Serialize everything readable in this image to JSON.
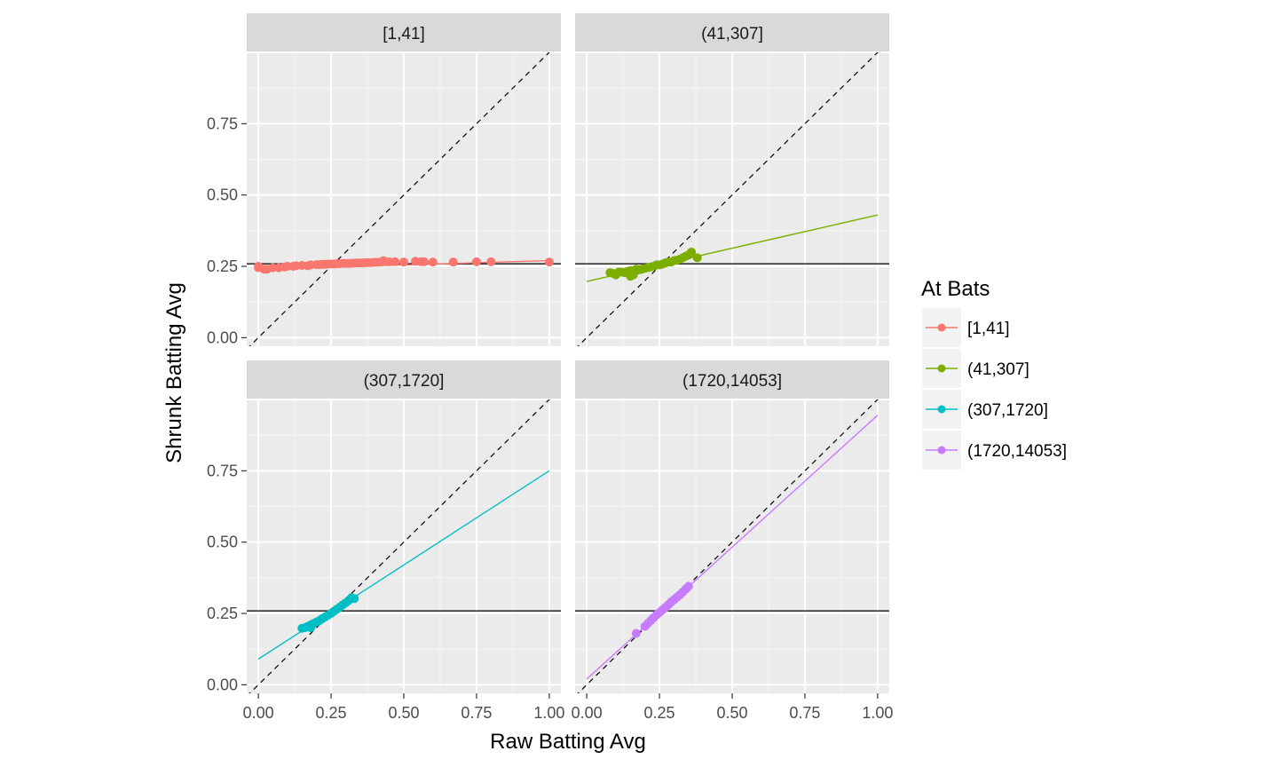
{
  "chart_data": {
    "type": "scatter",
    "xlabel": "Raw Batting Avg",
    "ylabel": "Shrunk Batting Avg",
    "xlim": [
      -0.04,
      1.04
    ],
    "ylim": [
      -0.03,
      1.0
    ],
    "x_ticks": [
      "0.00",
      "0.25",
      "0.50",
      "0.75",
      "1.00"
    ],
    "y_ticks": [
      "0.00",
      "0.25",
      "0.50",
      "0.75"
    ],
    "reference_hline": 0.259,
    "diagonal_line": "y = x (dashed)",
    "grid": true,
    "legend": {
      "title": "At Bats",
      "placement": "right",
      "entries": [
        {
          "label": "[1,41]",
          "color": "#F8766D"
        },
        {
          "label": "(41,307]",
          "color": "#7CAE00"
        },
        {
          "label": "(307,1720]",
          "color": "#00BFC4"
        },
        {
          "label": "(1720,14053]",
          "color": "#C77CFF"
        }
      ]
    },
    "panels": [
      {
        "strip": "[1,41]",
        "color": "#F8766D",
        "fit_line": {
          "x": [
            0.0,
            1.0
          ],
          "y": [
            0.24,
            0.27
          ]
        },
        "points_x": [
          0.0,
          0.0,
          0.02,
          0.03,
          0.05,
          0.07,
          0.09,
          0.1,
          0.12,
          0.13,
          0.15,
          0.17,
          0.18,
          0.2,
          0.21,
          0.22,
          0.23,
          0.24,
          0.25,
          0.26,
          0.27,
          0.28,
          0.29,
          0.3,
          0.31,
          0.32,
          0.33,
          0.34,
          0.35,
          0.36,
          0.37,
          0.38,
          0.39,
          0.4,
          0.41,
          0.42,
          0.43,
          0.45,
          0.47,
          0.5,
          0.54,
          0.56,
          0.57,
          0.6,
          0.67,
          0.75,
          0.8,
          1.0
        ],
        "points_y": [
          0.245,
          0.25,
          0.24,
          0.24,
          0.245,
          0.245,
          0.248,
          0.25,
          0.25,
          0.252,
          0.253,
          0.252,
          0.255,
          0.256,
          0.256,
          0.257,
          0.257,
          0.258,
          0.258,
          0.258,
          0.259,
          0.259,
          0.26,
          0.26,
          0.26,
          0.261,
          0.261,
          0.262,
          0.262,
          0.262,
          0.263,
          0.263,
          0.263,
          0.264,
          0.264,
          0.265,
          0.27,
          0.266,
          0.266,
          0.265,
          0.268,
          0.266,
          0.266,
          0.265,
          0.265,
          0.266,
          0.266,
          0.265
        ]
      },
      {
        "strip": "(41,307]",
        "color": "#7CAE00",
        "fit_line": {
          "x": [
            0.0,
            1.0
          ],
          "y": [
            0.197,
            0.43
          ]
        },
        "points_x": [
          0.08,
          0.09,
          0.1,
          0.11,
          0.12,
          0.13,
          0.14,
          0.15,
          0.15,
          0.16,
          0.17,
          0.17,
          0.18,
          0.19,
          0.2,
          0.21,
          0.22,
          0.23,
          0.24,
          0.25,
          0.26,
          0.27,
          0.28,
          0.29,
          0.3,
          0.31,
          0.32,
          0.33,
          0.34,
          0.35,
          0.36,
          0.38
        ],
        "points_y": [
          0.228,
          0.225,
          0.22,
          0.23,
          0.23,
          0.228,
          0.232,
          0.215,
          0.235,
          0.22,
          0.235,
          0.24,
          0.238,
          0.24,
          0.243,
          0.245,
          0.248,
          0.25,
          0.255,
          0.255,
          0.258,
          0.262,
          0.265,
          0.265,
          0.27,
          0.272,
          0.275,
          0.28,
          0.285,
          0.29,
          0.3,
          0.28
        ]
      },
      {
        "strip": "(307,1720]",
        "color": "#00BFC4",
        "fit_line": {
          "x": [
            0.0,
            1.0
          ],
          "y": [
            0.09,
            0.75
          ]
        },
        "points_x": [
          0.15,
          0.16,
          0.17,
          0.18,
          0.18,
          0.19,
          0.2,
          0.21,
          0.22,
          0.23,
          0.24,
          0.25,
          0.26,
          0.27,
          0.28,
          0.29,
          0.3,
          0.31,
          0.32,
          0.33
        ],
        "points_y": [
          0.198,
          0.2,
          0.205,
          0.2,
          0.21,
          0.215,
          0.22,
          0.225,
          0.232,
          0.238,
          0.244,
          0.25,
          0.258,
          0.265,
          0.272,
          0.28,
          0.287,
          0.295,
          0.305,
          0.302
        ]
      },
      {
        "strip": "(1720,14053]",
        "color": "#C77CFF",
        "fit_line": {
          "x": [
            0.0,
            1.0
          ],
          "y": [
            0.02,
            0.945
          ]
        },
        "points_x": [
          0.17,
          0.2,
          0.21,
          0.22,
          0.23,
          0.24,
          0.25,
          0.26,
          0.27,
          0.28,
          0.29,
          0.3,
          0.31,
          0.32,
          0.33,
          0.34,
          0.35
        ],
        "points_y": [
          0.18,
          0.205,
          0.215,
          0.225,
          0.235,
          0.245,
          0.253,
          0.262,
          0.27,
          0.28,
          0.29,
          0.298,
          0.307,
          0.315,
          0.325,
          0.335,
          0.345
        ]
      }
    ]
  }
}
